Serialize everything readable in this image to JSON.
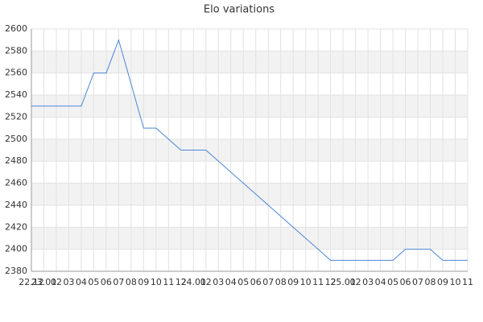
{
  "chart_data": {
    "type": "line",
    "title": "Elo variations",
    "categories": [
      "22.12",
      "23.01",
      "02",
      "03",
      "04",
      "05",
      "06",
      "07",
      "08",
      "09",
      "10",
      "11",
      "12",
      "24.01",
      "02",
      "03",
      "04",
      "05",
      "06",
      "07",
      "08",
      "09",
      "10",
      "11",
      "12",
      "25.01",
      "02",
      "03",
      "04",
      "05",
      "06",
      "07",
      "08",
      "09",
      "10",
      "11"
    ],
    "values": [
      2530,
      2530,
      2530,
      2530,
      2530,
      2560,
      2560,
      2590,
      2550,
      2510,
      2510,
      2500,
      2490,
      2490,
      2490,
      2480,
      2470,
      2460,
      2450,
      2440,
      2430,
      2420,
      2410,
      2400,
      2390,
      2390,
      2390,
      2390,
      2390,
      2390,
      2400,
      2400,
      2400,
      2390,
      2390,
      2390
    ],
    "color": "#4a86d8",
    "ylim": [
      2380,
      2600
    ],
    "yticks": [
      2380,
      2400,
      2420,
      2440,
      2460,
      2480,
      2500,
      2520,
      2540,
      2560,
      2580,
      2600
    ],
    "grid": true,
    "bands": true
  }
}
